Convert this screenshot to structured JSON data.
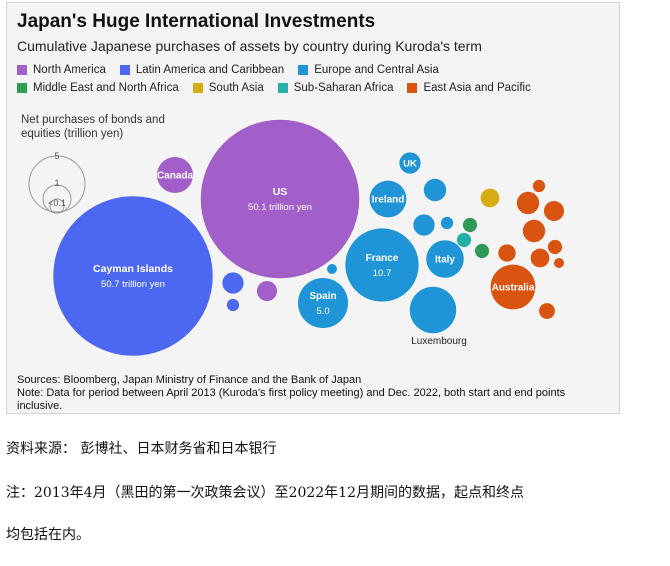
{
  "title": "Japan's Huge International Investments",
  "subtitle": "Cumulative Japanese purchases of assets by country during Kuroda's term",
  "legend": [
    {
      "label": "North America",
      "color": "#a25fc9"
    },
    {
      "label": "Latin America and Caribbean",
      "color": "#4d68f0"
    },
    {
      "label": "Europe and Central Asia",
      "color": "#1f94d6"
    },
    {
      "label": "Middle East and North Africa",
      "color": "#2e9a55"
    },
    {
      "label": "South Asia",
      "color": "#d9ac16"
    },
    {
      "label": "Sub-Saharan Africa",
      "color": "#24b0a7"
    },
    {
      "label": "East Asia and Pacific",
      "color": "#da5411"
    }
  ],
  "size_legend": {
    "title": "Net purchases of bonds and equities (trillion yen)",
    "labels": [
      "5",
      "1",
      "<0.1"
    ]
  },
  "sources": "Sources: Bloomberg, Japan Ministry of Finance and the Bank of Japan",
  "note": "Note: Data for period between April 2013 (Kuroda's first policy meeting) and Dec. 2022, both start and end points inclusive.",
  "chinese_source": "资料来源： 彭博社、日本财务省和日本银行",
  "chinese_note_line1": "注：2013年4月（黑田的第一次政策会议）至2022年12月期间的数据，起点和终点",
  "chinese_note_line2": "均包括在内。",
  "chart_data": {
    "type": "bubble",
    "unit": "trillion yen",
    "series": [
      {
        "name": "US",
        "region": "North America",
        "value": 50.1,
        "value_label": "50.1 trillion yen"
      },
      {
        "name": "Canada",
        "region": "North America",
        "value": 2.6
      },
      {
        "name": "Cayman Islands",
        "region": "Latin America and Caribbean",
        "value": 50.7,
        "value_label": "50.7 trillion yen"
      },
      {
        "name": "",
        "region": "Latin America and Caribbean",
        "value": 0.9
      },
      {
        "name": "",
        "region": "Latin America and Caribbean",
        "value": 0.3
      },
      {
        "name": "",
        "region": "North America",
        "value": 0.8
      },
      {
        "name": "UK",
        "region": "Europe and Central Asia",
        "value": 0.9
      },
      {
        "name": "Ireland",
        "region": "Europe and Central Asia",
        "value": 2.7
      },
      {
        "name": "France",
        "region": "Europe and Central Asia",
        "value": 10.7,
        "value_label": "10.7"
      },
      {
        "name": "Italy",
        "region": "Europe and Central Asia",
        "value": 2.8
      },
      {
        "name": "Spain",
        "region": "Europe and Central Asia",
        "value": 5.0,
        "value_label": "5.0"
      },
      {
        "name": "Luxembourg",
        "region": "Europe and Central Asia",
        "value": 4.3
      },
      {
        "name": "",
        "region": "Europe and Central Asia",
        "value": 1.0
      },
      {
        "name": "",
        "region": "Europe and Central Asia",
        "value": 0.9
      },
      {
        "name": "",
        "region": "Europe and Central Asia",
        "value": 0.3
      },
      {
        "name": "",
        "region": "Europe and Central Asia",
        "value": 0.2
      },
      {
        "name": "",
        "region": "Europe and Central Asia",
        "value": 0.1
      },
      {
        "name": "",
        "region": "Middle East and North Africa",
        "value": 0.4
      },
      {
        "name": "",
        "region": "Middle East and North Africa",
        "value": 0.4
      },
      {
        "name": "",
        "region": "South Asia",
        "value": 0.7
      },
      {
        "name": "",
        "region": "Sub-Saharan Africa",
        "value": 0.4
      },
      {
        "name": "Australia",
        "region": "East Asia and Pacific",
        "value": 4.0
      },
      {
        "name": "",
        "region": "East Asia and Pacific",
        "value": 1.0
      },
      {
        "name": "",
        "region": "East Asia and Pacific",
        "value": 1.0
      },
      {
        "name": "",
        "region": "East Asia and Pacific",
        "value": 0.8
      },
      {
        "name": "",
        "region": "East Asia and Pacific",
        "value": 0.7
      },
      {
        "name": "",
        "region": "East Asia and Pacific",
        "value": 0.6
      },
      {
        "name": "",
        "region": "East Asia and Pacific",
        "value": 0.5
      },
      {
        "name": "",
        "region": "East Asia and Pacific",
        "value": 0.4
      },
      {
        "name": "",
        "region": "East Asia and Pacific",
        "value": 0.3
      },
      {
        "name": "",
        "region": "East Asia and Pacific",
        "value": 0.2
      }
    ]
  }
}
